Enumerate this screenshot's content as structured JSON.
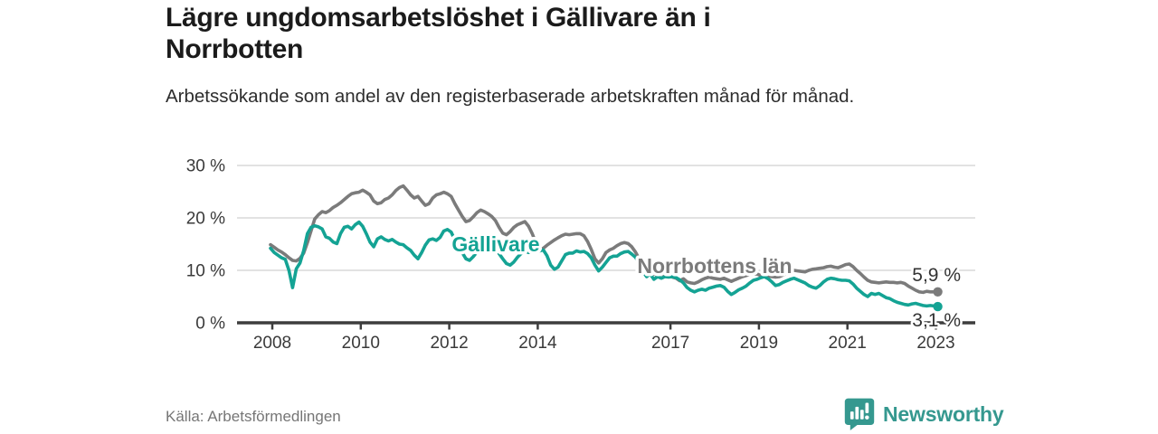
{
  "header": {
    "title": "Lägre ungdomsarbetslöshet i Gällivare än i Norrbotten",
    "subtitle": "Arbetssökande som andel av den registerbaserade arbetskraften månad för månad."
  },
  "footer": {
    "source": "Källa: Arbetsförmedlingen",
    "brand": "Newsworthy"
  },
  "colors": {
    "gallivare": "#14a394",
    "norrbotten": "#7b7b7b",
    "axis": "#3d3d3d",
    "grid": "#d9d9d9",
    "tick_text": "#3a3a3a",
    "end_label_text": "#333333",
    "brand_teal": "#35988f",
    "background": "#ffffff"
  },
  "chart_data": {
    "type": "line",
    "title": "Lägre ungdomsarbetslöshet i Gällivare än i Norrbotten",
    "subtitle": "Arbetssökande som andel av den registerbaserade arbetskraften månad för månad.",
    "unit": "%",
    "grid": true,
    "legend_position": "inline-labels",
    "x_start_year": 2008,
    "points_per_year": 12,
    "x_ticks": [
      2008,
      2010,
      2012,
      2014,
      2017,
      2019,
      2021,
      2023
    ],
    "x_tick_labels": [
      "2008",
      "2010",
      "2012",
      "2014",
      "2017",
      "2019",
      "2021",
      "2023"
    ],
    "y_ticks": [
      0,
      10,
      20,
      30
    ],
    "y_tick_labels": [
      "0 %",
      "10 %",
      "20 %",
      "30 %"
    ],
    "ylim": [
      0,
      30
    ],
    "series": [
      {
        "id": "gallivare",
        "name": "Gällivare",
        "color": "#14a394",
        "end_label": "3,1 %",
        "label_pos": {
          "year": 2013.05,
          "value": 15.0
        },
        "values": [
          14.2,
          13.4,
          12.9,
          12.4,
          12.1,
          10.0,
          6.7,
          10.3,
          11.4,
          13.8,
          17.0,
          18.2,
          18.5,
          18.3,
          17.9,
          16.4,
          16.1,
          15.4,
          15.1,
          17.0,
          18.2,
          18.4,
          17.9,
          18.7,
          19.2,
          18.4,
          17.0,
          15.4,
          14.5,
          16.0,
          16.4,
          15.9,
          15.6,
          15.9,
          15.4,
          15.0,
          14.9,
          14.3,
          13.8,
          12.9,
          12.2,
          13.4,
          14.8,
          15.8,
          16.0,
          15.7,
          16.3,
          17.5,
          17.8,
          17.3,
          15.8,
          15.0,
          13.4,
          12.2,
          11.9,
          12.6,
          13.5,
          14.3,
          14.8,
          14.6,
          14.4,
          14.0,
          13.2,
          12.2,
          11.3,
          11.0,
          11.6,
          12.5,
          13.2,
          13.6,
          13.4,
          13.8,
          14.0,
          13.7,
          13.9,
          12.8,
          11.0,
          10.2,
          10.6,
          11.8,
          13.0,
          13.3,
          13.3,
          13.7,
          13.5,
          13.6,
          13.2,
          12.4,
          11.0,
          9.9,
          10.6,
          11.5,
          12.4,
          12.7,
          12.7,
          13.2,
          13.5,
          13.6,
          13.1,
          12.5,
          11.4,
          9.8,
          8.8,
          9.3,
          8.3,
          8.8,
          8.5,
          8.8,
          8.7,
          8.8,
          8.6,
          8.2,
          7.6,
          6.7,
          6.2,
          5.9,
          6.2,
          6.4,
          6.2,
          6.6,
          6.8,
          7.0,
          7.1,
          6.8,
          6.0,
          5.4,
          5.8,
          6.3,
          6.6,
          7.0,
          7.6,
          8.1,
          8.3,
          8.6,
          8.8,
          8.4,
          7.8,
          7.1,
          7.3,
          7.7,
          8.0,
          8.3,
          8.5,
          8.2,
          7.9,
          7.6,
          7.1,
          6.8,
          6.6,
          7.1,
          7.8,
          8.3,
          8.5,
          8.4,
          8.2,
          8.1,
          8.1,
          8.0,
          7.4,
          6.6,
          6.0,
          5.4,
          5.0,
          5.6,
          5.4,
          5.6,
          5.2,
          4.8,
          4.6,
          4.2,
          3.9,
          3.7,
          3.5,
          3.4,
          3.6,
          3.7,
          3.5,
          3.3,
          3.2,
          3.3,
          3.2,
          3.1
        ]
      },
      {
        "id": "norrbotten",
        "name": "Norrbottens län",
        "color": "#7b7b7b",
        "end_label": "5,9 %",
        "label_pos": {
          "year": 2018.0,
          "value": 10.9
        },
        "values": [
          14.9,
          14.4,
          13.9,
          13.5,
          13.0,
          12.4,
          11.9,
          11.8,
          12.3,
          13.3,
          15.3,
          17.5,
          19.8,
          20.6,
          21.2,
          21.0,
          21.4,
          22.0,
          22.4,
          22.9,
          23.5,
          24.1,
          24.6,
          24.8,
          24.9,
          25.3,
          24.9,
          24.4,
          23.2,
          22.7,
          22.9,
          23.5,
          23.8,
          24.4,
          25.2,
          25.8,
          26.1,
          25.3,
          24.4,
          23.8,
          24.1,
          23.2,
          22.4,
          22.7,
          23.8,
          24.4,
          24.6,
          24.9,
          24.6,
          24.1,
          22.7,
          21.5,
          20.3,
          19.3,
          19.5,
          20.2,
          21.0,
          21.5,
          21.2,
          20.8,
          20.3,
          19.5,
          18.2,
          17.1,
          16.8,
          17.4,
          18.2,
          18.7,
          19.0,
          19.3,
          18.4,
          17.0,
          15.2,
          13.8,
          14.2,
          14.8,
          15.3,
          15.8,
          16.2,
          16.6,
          16.9,
          16.8,
          16.9,
          17.0,
          17.0,
          16.6,
          15.5,
          14.0,
          12.2,
          11.4,
          12.2,
          13.4,
          13.9,
          14.2,
          14.7,
          15.1,
          15.3,
          15.1,
          14.5,
          13.5,
          12.2,
          11.2,
          10.3,
          9.7,
          9.3,
          9.1,
          9.3,
          9.1,
          9.0,
          8.7,
          8.5,
          8.0,
          8.4,
          7.8,
          7.6,
          7.5,
          7.8,
          8.2,
          8.5,
          8.7,
          8.5,
          8.4,
          8.3,
          8.5,
          8.2,
          7.9,
          8.2,
          8.5,
          8.8,
          9.0,
          9.2,
          9.3,
          9.3,
          9.0,
          9.2,
          8.9,
          8.8,
          8.7,
          8.8,
          9.1,
          9.4,
          9.7,
          10.0,
          9.9,
          9.8,
          9.7,
          10.0,
          10.2,
          10.3,
          10.4,
          10.5,
          10.7,
          10.8,
          10.6,
          10.5,
          10.8,
          11.1,
          11.2,
          10.7,
          10.0,
          9.4,
          8.7,
          8.1,
          7.8,
          7.7,
          7.6,
          7.7,
          7.8,
          7.7,
          7.7,
          7.6,
          7.7,
          7.5,
          7.0,
          6.6,
          6.2,
          5.9,
          5.8,
          6.0,
          5.9,
          5.9,
          5.9
        ]
      }
    ]
  }
}
